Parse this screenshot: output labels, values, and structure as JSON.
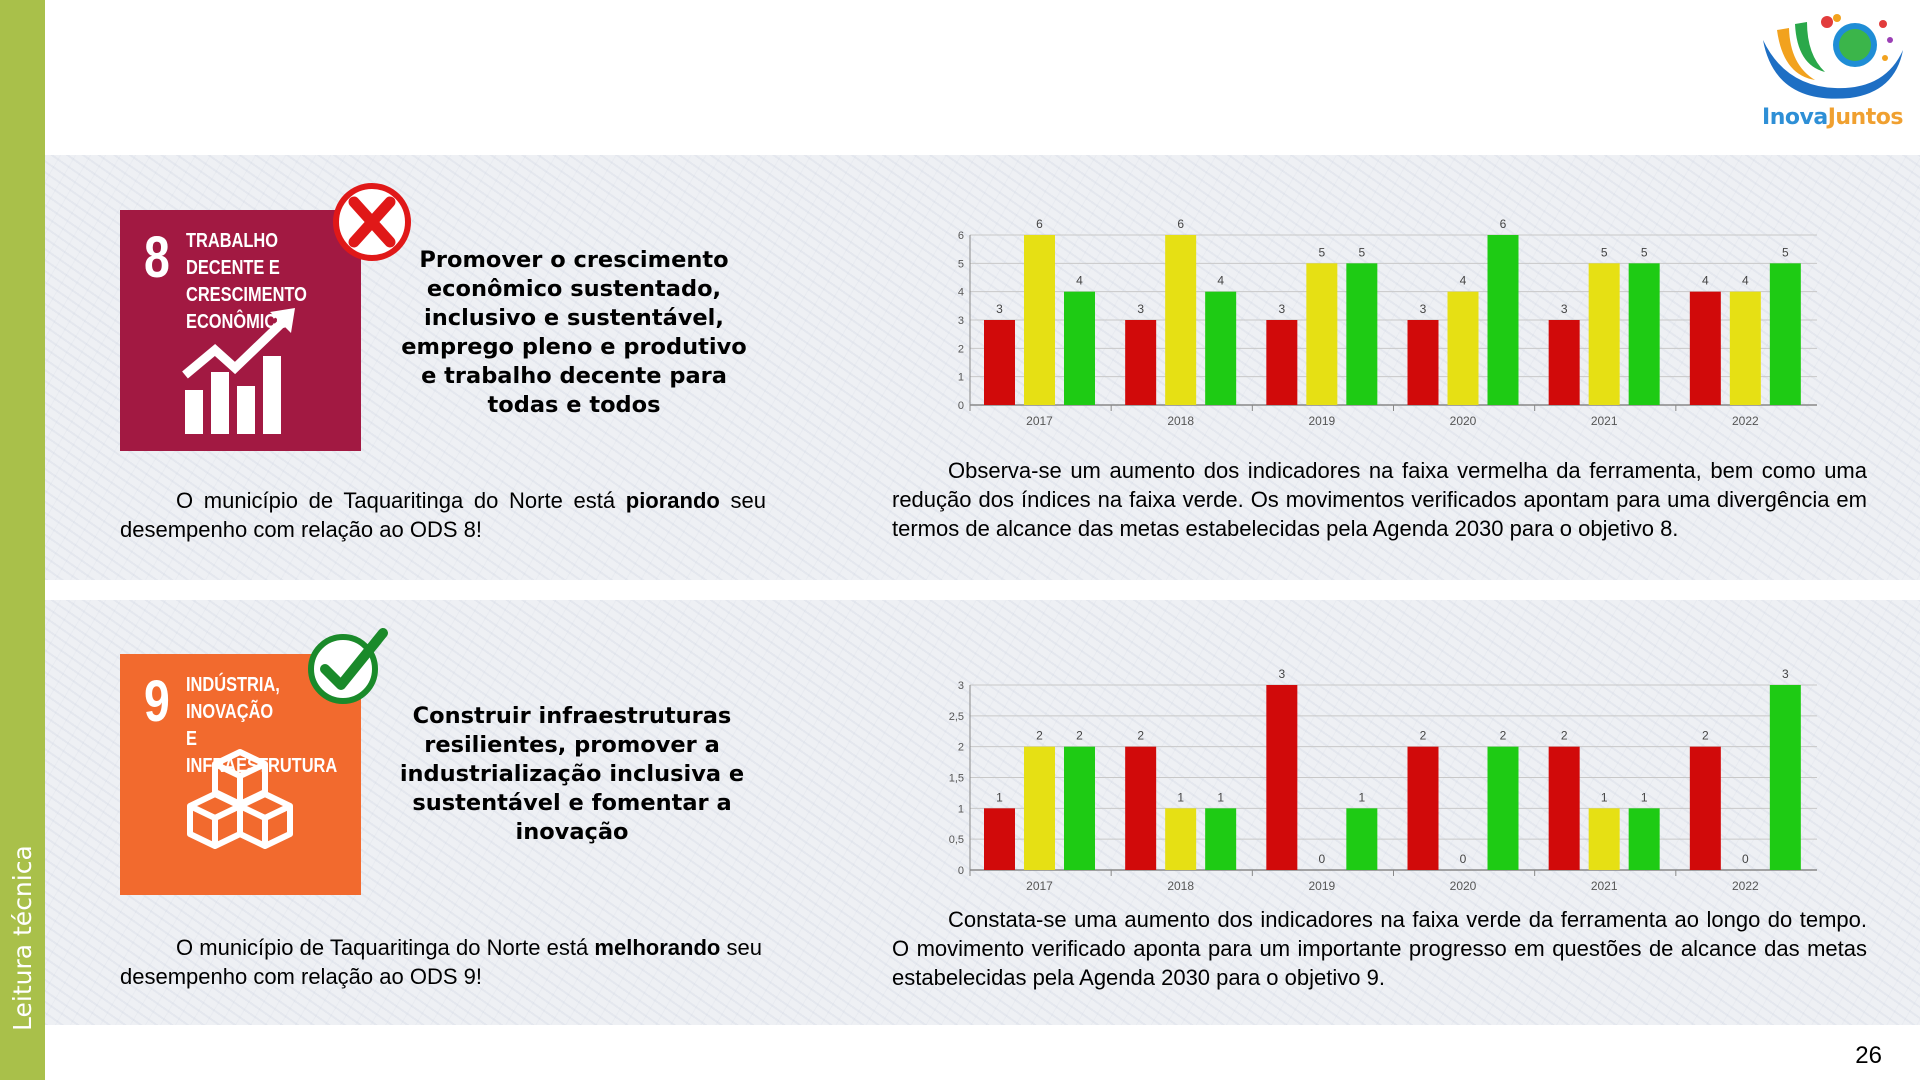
{
  "sidebar": {
    "label": "Leitura técnica"
  },
  "logo": {
    "part1": "Inova",
    "part2": "Juntos"
  },
  "page_number": "26",
  "sections": [
    {
      "sdg_number": "8",
      "sdg_title": "TRABALHO DECENTE E\nCRESCIMENTO\nECONÔMICO",
      "status_icon": "red-x-icon",
      "goal_text": "Promover o crescimento econômico sustentado, inclusivo e sustentável, emprego pleno e produtivo e trabalho decente para todas e todos",
      "summary_pre": "O município de Taquaritinga do Norte está ",
      "summary_bold": "piorando",
      "summary_post": " seu desempenho com relação ao ODS 8!",
      "analysis": "Observa-se um aumento dos indicadores na faixa vermelha da ferramenta, bem como uma redução dos índices na faixa verde. Os movimentos verificados apontam para uma divergência em termos de alcance das metas estabelecidas pela Agenda 2030 para o objetivo 8."
    },
    {
      "sdg_number": "9",
      "sdg_title": "INDÚSTRIA, INOVAÇÃO\nE INFRAESTRUTURA",
      "status_icon": "green-check-icon",
      "goal_text": "Construir infraestruturas resilientes, promover a industrialização inclusiva e sustentável e fomentar a inovação",
      "summary_pre": "O município de Taquaritinga do Norte está ",
      "summary_bold": "melhorando",
      "summary_post": " seu desempenho com relação ao ODS 9!",
      "analysis": "Constata-se uma aumento dos indicadores na faixa verde da ferramenta ao longo do tempo. O movimento verificado aponta para um importante progresso em questões de alcance das metas estabelecidas pela Agenda 2030 para o objetivo 9."
    }
  ],
  "chart_data": [
    {
      "type": "bar",
      "categories": [
        "2017",
        "2018",
        "2019",
        "2020",
        "2021",
        "2022"
      ],
      "series": [
        {
          "color": "#d10a0a",
          "values": [
            3,
            3,
            3,
            3,
            3,
            4
          ]
        },
        {
          "color": "#e6e014",
          "values": [
            6,
            6,
            5,
            4,
            5,
            4
          ]
        },
        {
          "color": "#1ecb14",
          "values": [
            4,
            4,
            5,
            6,
            5,
            5
          ]
        }
      ],
      "ylim": [
        0,
        6
      ],
      "yticks": [
        "0",
        "1",
        "2",
        "3",
        "4",
        "5",
        "6"
      ],
      "ytick_values": [
        0,
        1,
        2,
        3,
        4,
        5,
        6
      ],
      "grid": true
    },
    {
      "type": "bar",
      "categories": [
        "2017",
        "2018",
        "2019",
        "2020",
        "2021",
        "2022"
      ],
      "series": [
        {
          "color": "#d10a0a",
          "values": [
            1,
            2,
            3,
            2,
            2,
            2
          ]
        },
        {
          "color": "#e6e014",
          "values": [
            2,
            1,
            0,
            0,
            1,
            0
          ]
        },
        {
          "color": "#1ecb14",
          "values": [
            2,
            1,
            1,
            2,
            1,
            3
          ]
        }
      ],
      "ylim": [
        0,
        3
      ],
      "yticks": [
        "0",
        "0,5",
        "1",
        "1,5",
        "2",
        "2,5",
        "3"
      ],
      "ytick_values": [
        0,
        0.5,
        1,
        1.5,
        2,
        2.5,
        3
      ],
      "grid": true
    }
  ]
}
